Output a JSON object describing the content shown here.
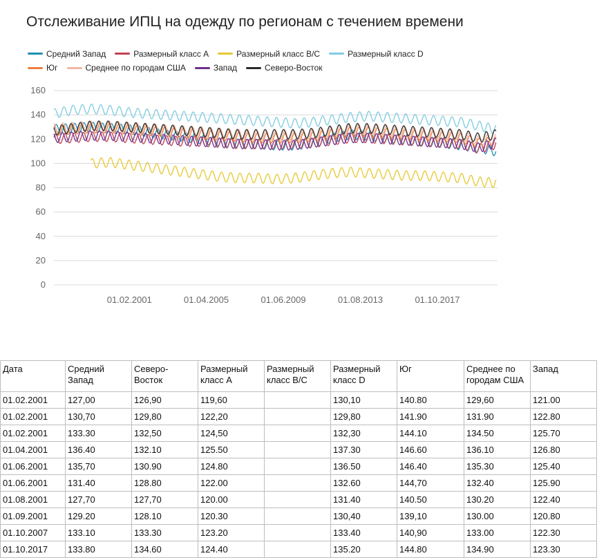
{
  "chart_data": {
    "type": "line",
    "title": "Отслеживание ИПЦ на одежду по регионам с течением времени",
    "xlabel": "",
    "ylabel": "",
    "ylim": [
      0,
      160
    ],
    "yticks": [
      0,
      20,
      40,
      60,
      80,
      100,
      120,
      140,
      160
    ],
    "xlim": [
      "1997-01-01",
      "2021-01-01"
    ],
    "xticks": [
      "01.02.2001",
      "01.04.2005",
      "01.06.2009",
      "01.08.2013",
      "01.10.2017"
    ],
    "xtick_dates": [
      "2001-02-01",
      "2005-04-01",
      "2009-06-01",
      "2013-08-01",
      "2017-10-01"
    ],
    "grid": "horizontal",
    "legend_position": "top-left",
    "x_dates": [
      "1997-01-01",
      "1998-01-01",
      "1999-01-01",
      "2000-01-01",
      "2001-01-01",
      "2002-01-01",
      "2003-01-01",
      "2004-01-01",
      "2005-01-01",
      "2006-01-01",
      "2007-01-01",
      "2008-01-01",
      "2009-01-01",
      "2010-01-01",
      "2011-01-01",
      "2012-01-01",
      "2013-01-01",
      "2014-01-01",
      "2015-01-01",
      "2016-01-01",
      "2017-01-01",
      "2018-01-01",
      "2019-01-01",
      "2020-01-01",
      "2020-12-01"
    ],
    "seasonal_amplitude": 4,
    "series": [
      {
        "name": "Средний Запад",
        "color": "#1f8fb0",
        "values": [
          128,
          129,
          130,
          129,
          128,
          126,
          124,
          122,
          120,
          118,
          117,
          116,
          115,
          115,
          117,
          121,
          124,
          123,
          121,
          120,
          118,
          117,
          115,
          113,
          110
        ]
      },
      {
        "name": "Размерный класс A",
        "color": "#c0404f",
        "values": [
          120,
          121,
          122,
          122,
          121,
          120,
          119,
          118,
          118,
          117,
          116,
          116,
          116,
          116,
          117,
          119,
          121,
          121,
          120,
          119,
          118,
          117,
          116,
          112,
          116
        ]
      },
      {
        "name": "Размерный класс B/C",
        "color": "#e6c833",
        "values": [
          null,
          null,
          100,
          101,
          99,
          97,
          95,
          93,
          91,
          89,
          88,
          88,
          87,
          88,
          90,
          92,
          93,
          92,
          91,
          90,
          90,
          89,
          88,
          85,
          84
        ]
      },
      {
        "name": "Размерный класс D",
        "color": "#7fcbe0",
        "values": [
          141,
          144,
          145,
          144,
          142,
          141,
          140,
          139,
          138,
          137,
          136,
          135,
          134,
          133,
          134,
          136,
          138,
          139,
          138,
          137,
          136,
          135,
          134,
          131,
          128
        ]
      },
      {
        "name": "Юг",
        "color": "#ef7d3c",
        "values": [
          127,
          128,
          129,
          129,
          128,
          127,
          126,
          125,
          124,
          123,
          122,
          121,
          121,
          121,
          122,
          124,
          126,
          126,
          125,
          124,
          123,
          122,
          121,
          117,
          118
        ]
      },
      {
        "name": "Среднее по городам США",
        "color": "#f2b5a0",
        "values": [
          129,
          130,
          131,
          131,
          130,
          129,
          128,
          127,
          126,
          125,
          124,
          123,
          123,
          123,
          124,
          126,
          128,
          128,
          127,
          126,
          125,
          124,
          123,
          119,
          120
        ]
      },
      {
        "name": "Запад",
        "color": "#6e2e8e",
        "values": [
          121,
          122,
          123,
          123,
          122,
          121,
          120,
          119,
          118,
          117,
          116,
          116,
          115,
          115,
          117,
          119,
          121,
          121,
          120,
          119,
          118,
          117,
          116,
          113,
          117
        ]
      },
      {
        "name": "Северо-Восток",
        "color": "#2a2a2a",
        "values": [
          127,
          129,
          131,
          131,
          130,
          129,
          128,
          127,
          126,
          125,
          124,
          124,
          124,
          124,
          125,
          127,
          129,
          129,
          128,
          127,
          126,
          125,
          124,
          121,
          124
        ]
      }
    ]
  },
  "table": {
    "headers": [
      "Дата",
      "Средний Запад",
      "Северо-Восток",
      "Размерный класс A",
      "Размерный класс B/C",
      "Размерный класс D",
      "Юг",
      "Среднее по городам США",
      "Запад"
    ],
    "rows": [
      [
        "01.02.2001",
        "127,00",
        "126,90",
        "119,60",
        "",
        "130,10",
        "140.80",
        "129,60",
        "121.00"
      ],
      [
        "01.02.2001",
        "130,70",
        "129,80",
        "122,20",
        "",
        "129,80",
        "141.90",
        "131.90",
        "122.80"
      ],
      [
        "01.02.2001",
        "133.30",
        "132,50",
        "124,50",
        "",
        "132,30",
        "144.10",
        "134.50",
        "125.70"
      ],
      [
        "01.04.2001",
        "136.40",
        "132.10",
        "125.50",
        "",
        "137.30",
        "146.60",
        "136.10",
        "126.80"
      ],
      [
        "01.06.2001",
        "135,70",
        "130.90",
        "124.80",
        "",
        "136.50",
        "146.40",
        "135.30",
        "125.40"
      ],
      [
        "01.06.2001",
        "131.40",
        "128.80",
        "122.00",
        "",
        "132.60",
        "144,70",
        "132.40",
        "125.90"
      ],
      [
        "01.08.2001",
        "127,70",
        "127,70",
        "120.00",
        "",
        "131.40",
        "140.50",
        "130.20",
        "122.40"
      ],
      [
        "01.09.2001",
        "129.20",
        "128.10",
        "120.30",
        "",
        "130,40",
        "139,10",
        "130.00",
        "120.80"
      ],
      [
        "01.10.2007",
        "133.10",
        "133.30",
        "123.20",
        "",
        "133.40",
        "140,90",
        "133.00",
        "122.30"
      ],
      [
        "01.10.2017",
        "133.80",
        "134.60",
        "124.40",
        "",
        "135.20",
        "144.80",
        "134.90",
        "123.30"
      ]
    ]
  }
}
